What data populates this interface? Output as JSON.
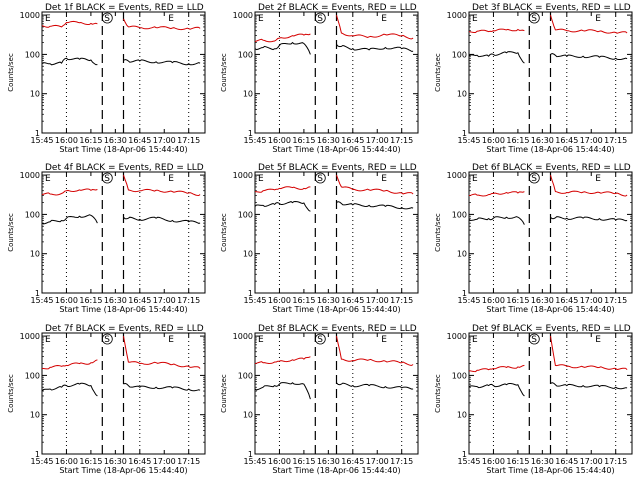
{
  "chart_data": [
    {
      "type": "line",
      "title": "Det 1f BLACK = Events, RED = LLD",
      "xlabel": "Start Time (18-Apr-06 15:44:40)",
      "ylabel": "Counts/sec",
      "x_ticks": [
        "15:45",
        "16:00",
        "16:15",
        "16:30",
        "16:45",
        "17:00",
        "17:15"
      ],
      "y_ticks": [
        "1",
        "10",
        "100",
        "1000"
      ],
      "ylim": [
        1,
        1200
      ],
      "scale": "log",
      "dotted_lines": [
        "16:00",
        "16:45",
        "17:15"
      ],
      "dashed_lines": [
        "16:22",
        "16:35"
      ],
      "annotations": [
        "E",
        "S",
        "E"
      ],
      "series": [
        {
          "color": "#d40000",
          "x": [
            "15:45",
            "15:50",
            "15:57",
            "16:00",
            "16:08",
            "16:15",
            "16:19",
            "16:22",
            "16:35",
            "16:38",
            "16:45",
            "16:55",
            "17:05",
            "17:15",
            "17:22"
          ],
          "values": [
            540,
            520,
            500,
            650,
            640,
            610,
            600,
            null,
            800,
            500,
            480,
            480,
            470,
            450,
            460
          ]
        },
        {
          "color": "#000000",
          "x": [
            "15:45",
            "15:50",
            "15:57",
            "16:00",
            "16:08",
            "16:15",
            "16:19",
            "16:22",
            "16:35",
            "16:38",
            "16:45",
            "16:55",
            "17:05",
            "17:15",
            "17:22"
          ],
          "values": [
            58,
            58,
            60,
            80,
            75,
            72,
            55,
            null,
            70,
            68,
            68,
            65,
            62,
            58,
            60
          ]
        }
      ]
    },
    {
      "type": "line",
      "title": "Det 2f BLACK = Events, RED = LLD",
      "xlabel": "Start Time (18-Apr-06 15:44:40)",
      "ylabel": "Counts/sec",
      "x_ticks": [
        "15:45",
        "16:00",
        "16:15",
        "16:30",
        "16:45",
        "17:00",
        "17:15"
      ],
      "y_ticks": [
        "1",
        "10",
        "100",
        "1000"
      ],
      "ylim": [
        1,
        1200
      ],
      "scale": "log",
      "dotted_lines": [
        "16:00",
        "16:45",
        "17:15"
      ],
      "dashed_lines": [
        "16:22",
        "16:35"
      ],
      "annotations": [
        "E",
        "S",
        "E"
      ],
      "series": [
        {
          "color": "#d40000",
          "x": [
            "15:45",
            "15:50",
            "15:57",
            "16:00",
            "16:08",
            "16:15",
            "16:19",
            "16:22",
            "16:35",
            "16:38",
            "16:45",
            "16:55",
            "17:05",
            "17:15",
            "17:22"
          ],
          "values": [
            210,
            230,
            220,
            260,
            300,
            310,
            330,
            null,
            1000,
            350,
            300,
            280,
            320,
            300,
            260
          ]
        },
        {
          "color": "#000000",
          "x": [
            "15:45",
            "15:50",
            "15:57",
            "16:00",
            "16:08",
            "16:15",
            "16:19",
            "16:22",
            "16:35",
            "16:38",
            "16:45",
            "16:55",
            "17:05",
            "17:15",
            "17:22"
          ],
          "values": [
            140,
            150,
            140,
            170,
            200,
            190,
            100,
            null,
            180,
            160,
            140,
            130,
            150,
            140,
            120
          ]
        }
      ]
    },
    {
      "type": "line",
      "title": "Det 3f BLACK = Events, RED = LLD",
      "xlabel": "Start Time (18-Apr-06 15:44:40)",
      "ylabel": "Counts/sec",
      "x_ticks": [
        "15:45",
        "16:00",
        "16:15",
        "16:30",
        "16:45",
        "17:00",
        "17:15"
      ],
      "y_ticks": [
        "1",
        "10",
        "100",
        "1000"
      ],
      "ylim": [
        1,
        1200
      ],
      "scale": "log",
      "dotted_lines": [
        "16:00",
        "16:45",
        "17:15"
      ],
      "dashed_lines": [
        "16:22",
        "16:35"
      ],
      "annotations": [
        "E",
        "S",
        "E"
      ],
      "series": [
        {
          "color": "#d40000",
          "x": [
            "15:45",
            "15:50",
            "15:57",
            "16:00",
            "16:08",
            "16:15",
            "16:19",
            "16:22",
            "16:35",
            "16:38",
            "16:45",
            "16:55",
            "17:05",
            "17:15",
            "17:22"
          ],
          "values": [
            380,
            390,
            380,
            400,
            420,
            430,
            400,
            null,
            1000,
            420,
            400,
            400,
            390,
            360,
            350
          ]
        },
        {
          "color": "#000000",
          "x": [
            "15:45",
            "15:50",
            "15:57",
            "16:00",
            "16:08",
            "16:15",
            "16:19",
            "16:22",
            "16:35",
            "16:38",
            "16:45",
            "16:55",
            "17:05",
            "17:15",
            "17:22"
          ],
          "values": [
            90,
            95,
            90,
            100,
            110,
            110,
            60,
            null,
            100,
            95,
            90,
            90,
            85,
            80,
            78
          ]
        }
      ]
    },
    {
      "type": "line",
      "title": "Det 4f BLACK = Events, RED = LLD",
      "xlabel": "Start Time (18-Apr-06 15:44:40)",
      "ylabel": "Counts/sec",
      "x_ticks": [
        "15:45",
        "16:00",
        "16:15",
        "16:30",
        "16:45",
        "17:00",
        "17:15"
      ],
      "y_ticks": [
        "1",
        "10",
        "100",
        "1000"
      ],
      "ylim": [
        1,
        1200
      ],
      "scale": "log",
      "dotted_lines": [
        "16:00",
        "16:45",
        "17:15"
      ],
      "dashed_lines": [
        "16:22",
        "16:35"
      ],
      "annotations": [
        "E",
        "S",
        "E"
      ],
      "series": [
        {
          "color": "#d40000",
          "x": [
            "15:45",
            "15:50",
            "15:57",
            "16:00",
            "16:08",
            "16:15",
            "16:19",
            "16:22",
            "16:35",
            "16:38",
            "16:45",
            "16:55",
            "17:05",
            "17:15",
            "17:22"
          ],
          "values": [
            320,
            330,
            340,
            400,
            420,
            410,
            430,
            null,
            1000,
            420,
            400,
            410,
            380,
            350,
            320
          ]
        },
        {
          "color": "#000000",
          "x": [
            "15:45",
            "15:50",
            "15:57",
            "16:00",
            "16:08",
            "16:15",
            "16:19",
            "16:22",
            "16:35",
            "16:38",
            "16:45",
            "16:55",
            "17:05",
            "17:15",
            "17:22"
          ],
          "values": [
            60,
            65,
            70,
            80,
            90,
            95,
            60,
            null,
            85,
            80,
            75,
            80,
            70,
            65,
            60
          ]
        }
      ]
    },
    {
      "type": "line",
      "title": "Det 5f BLACK = Events, RED = LLD",
      "xlabel": "Start Time (18-Apr-06 15:44:40)",
      "ylabel": "Counts/sec",
      "x_ticks": [
        "15:45",
        "16:00",
        "16:15",
        "16:30",
        "16:45",
        "17:00",
        "17:15"
      ],
      "y_ticks": [
        "1",
        "10",
        "100",
        "1000"
      ],
      "ylim": [
        1,
        1200
      ],
      "scale": "log",
      "dotted_lines": [
        "16:00",
        "16:45",
        "17:15"
      ],
      "dashed_lines": [
        "16:22",
        "16:35"
      ],
      "annotations": [
        "E",
        "S",
        "E"
      ],
      "series": [
        {
          "color": "#d40000",
          "x": [
            "15:45",
            "15:50",
            "15:57",
            "16:00",
            "16:08",
            "16:15",
            "16:19",
            "16:22",
            "16:35",
            "16:38",
            "16:45",
            "16:55",
            "17:05",
            "17:15",
            "17:22"
          ],
          "values": [
            380,
            400,
            420,
            460,
            480,
            460,
            500,
            null,
            1000,
            500,
            430,
            420,
            400,
            350,
            330
          ]
        },
        {
          "color": "#000000",
          "x": [
            "15:45",
            "15:50",
            "15:57",
            "16:00",
            "16:08",
            "16:15",
            "16:19",
            "16:22",
            "16:35",
            "16:38",
            "16:45",
            "16:55",
            "17:05",
            "17:15",
            "17:22"
          ],
          "values": [
            160,
            170,
            180,
            190,
            200,
            195,
            120,
            null,
            200,
            190,
            175,
            170,
            160,
            150,
            145
          ]
        }
      ]
    },
    {
      "type": "line",
      "title": "Det 6f BLACK = Events, RED = LLD",
      "xlabel": "Start Time (18-Apr-06 15:44:40)",
      "ylabel": "Counts/sec",
      "x_ticks": [
        "15:45",
        "16:00",
        "16:15",
        "16:30",
        "16:45",
        "17:00",
        "17:15"
      ],
      "y_ticks": [
        "1",
        "10",
        "100",
        "1000"
      ],
      "ylim": [
        1,
        1200
      ],
      "scale": "log",
      "dotted_lines": [
        "16:00",
        "16:45",
        "17:15"
      ],
      "dashed_lines": [
        "16:22",
        "16:35"
      ],
      "annotations": [
        "E",
        "S",
        "E"
      ],
      "series": [
        {
          "color": "#d40000",
          "x": [
            "15:45",
            "15:50",
            "15:57",
            "16:00",
            "16:08",
            "16:15",
            "16:19",
            "16:22",
            "16:35",
            "16:38",
            "16:45",
            "16:55",
            "17:05",
            "17:15",
            "17:22"
          ],
          "values": [
            300,
            310,
            320,
            340,
            360,
            350,
            380,
            null,
            1000,
            380,
            360,
            370,
            360,
            340,
            310
          ]
        },
        {
          "color": "#000000",
          "x": [
            "15:45",
            "15:50",
            "15:57",
            "16:00",
            "16:08",
            "16:15",
            "16:19",
            "16:22",
            "16:35",
            "16:38",
            "16:45",
            "16:55",
            "17:05",
            "17:15",
            "17:22"
          ],
          "values": [
            75,
            75,
            78,
            80,
            85,
            85,
            55,
            null,
            85,
            82,
            80,
            80,
            78,
            72,
            70
          ]
        }
      ]
    },
    {
      "type": "line",
      "title": "Det 7f BLACK = Events, RED = LLD",
      "xlabel": "Start Time (18-Apr-06 15:44:40)",
      "ylabel": "Counts/sec",
      "x_ticks": [
        "15:45",
        "16:00",
        "16:15",
        "16:30",
        "16:45",
        "17:00",
        "17:15"
      ],
      "y_ticks": [
        "1",
        "10",
        "100",
        "1000"
      ],
      "ylim": [
        1,
        1200
      ],
      "scale": "log",
      "dotted_lines": [
        "16:00",
        "16:45",
        "17:15"
      ],
      "dashed_lines": [
        "16:22",
        "16:35"
      ],
      "annotations": [
        "E",
        "S",
        "E"
      ],
      "series": [
        {
          "color": "#d40000",
          "x": [
            "15:45",
            "15:50",
            "15:57",
            "16:00",
            "16:08",
            "16:15",
            "16:19",
            "16:22",
            "16:35",
            "16:38",
            "16:45",
            "16:55",
            "17:05",
            "17:15",
            "17:22"
          ],
          "values": [
            150,
            160,
            170,
            180,
            200,
            210,
            250,
            null,
            1000,
            220,
            200,
            210,
            190,
            170,
            150
          ]
        },
        {
          "color": "#000000",
          "x": [
            "15:45",
            "15:50",
            "15:57",
            "16:00",
            "16:08",
            "16:15",
            "16:19",
            "16:22",
            "16:35",
            "16:38",
            "16:45",
            "16:55",
            "17:05",
            "17:15",
            "17:22"
          ],
          "values": [
            40,
            45,
            50,
            55,
            60,
            55,
            30,
            null,
            60,
            55,
            50,
            50,
            48,
            45,
            42
          ]
        }
      ]
    },
    {
      "type": "line",
      "title": "Det 8f BLACK = Events, RED = LLD",
      "xlabel": "Start Time (18-Apr-06 15:44:40)",
      "ylabel": "Counts/sec",
      "x_ticks": [
        "15:45",
        "16:00",
        "16:15",
        "16:30",
        "16:45",
        "17:00",
        "17:15"
      ],
      "y_ticks": [
        "1",
        "10",
        "100",
        "1000"
      ],
      "ylim": [
        1,
        1200
      ],
      "scale": "log",
      "dotted_lines": [
        "16:00",
        "16:45",
        "17:15"
      ],
      "dashed_lines": [
        "16:22",
        "16:35"
      ],
      "annotations": [
        "E",
        "S",
        "E"
      ],
      "series": [
        {
          "color": "#d40000",
          "x": [
            "15:45",
            "15:50",
            "15:57",
            "16:00",
            "16:08",
            "16:15",
            "16:19",
            "16:22",
            "16:35",
            "16:38",
            "16:45",
            "16:55",
            "17:05",
            "17:15",
            "17:22"
          ],
          "values": [
            200,
            210,
            220,
            230,
            250,
            260,
            300,
            null,
            1000,
            260,
            240,
            250,
            230,
            210,
            190
          ]
        },
        {
          "color": "#000000",
          "x": [
            "15:45",
            "15:50",
            "15:57",
            "16:00",
            "16:08",
            "16:15",
            "16:19",
            "16:22",
            "16:35",
            "16:38",
            "16:45",
            "16:55",
            "17:05",
            "17:15",
            "17:22"
          ],
          "values": [
            45,
            50,
            55,
            60,
            65,
            60,
            25,
            null,
            65,
            60,
            55,
            55,
            52,
            48,
            45
          ]
        }
      ]
    },
    {
      "type": "line",
      "title": "Det 9f BLACK = Events, RED = LLD",
      "xlabel": "Start Time (18-Apr-06 15:44:40)",
      "ylabel": "Counts/sec",
      "x_ticks": [
        "15:45",
        "16:00",
        "16:15",
        "16:30",
        "16:45",
        "17:00",
        "17:15"
      ],
      "y_ticks": [
        "1",
        "10",
        "100",
        "1000"
      ],
      "ylim": [
        1,
        1200
      ],
      "scale": "log",
      "dotted_lines": [
        "16:00",
        "16:45",
        "17:15"
      ],
      "dashed_lines": [
        "16:22",
        "16:35"
      ],
      "annotations": [
        "E",
        "S",
        "E"
      ],
      "series": [
        {
          "color": "#d40000",
          "x": [
            "15:45",
            "15:50",
            "15:57",
            "16:00",
            "16:08",
            "16:15",
            "16:19",
            "16:22",
            "16:35",
            "16:38",
            "16:45",
            "16:55",
            "17:05",
            "17:15",
            "17:22"
          ],
          "values": [
            130,
            135,
            140,
            150,
            160,
            165,
            180,
            null,
            1000,
            180,
            170,
            165,
            160,
            150,
            140
          ]
        },
        {
          "color": "#000000",
          "x": [
            "15:45",
            "15:50",
            "15:57",
            "16:00",
            "16:08",
            "16:15",
            "16:19",
            "16:22",
            "16:35",
            "16:38",
            "16:45",
            "16:55",
            "17:05",
            "17:15",
            "17:22"
          ],
          "values": [
            50,
            52,
            55,
            55,
            58,
            58,
            30,
            null,
            62,
            58,
            55,
            55,
            52,
            50,
            48
          ]
        }
      ]
    }
  ]
}
